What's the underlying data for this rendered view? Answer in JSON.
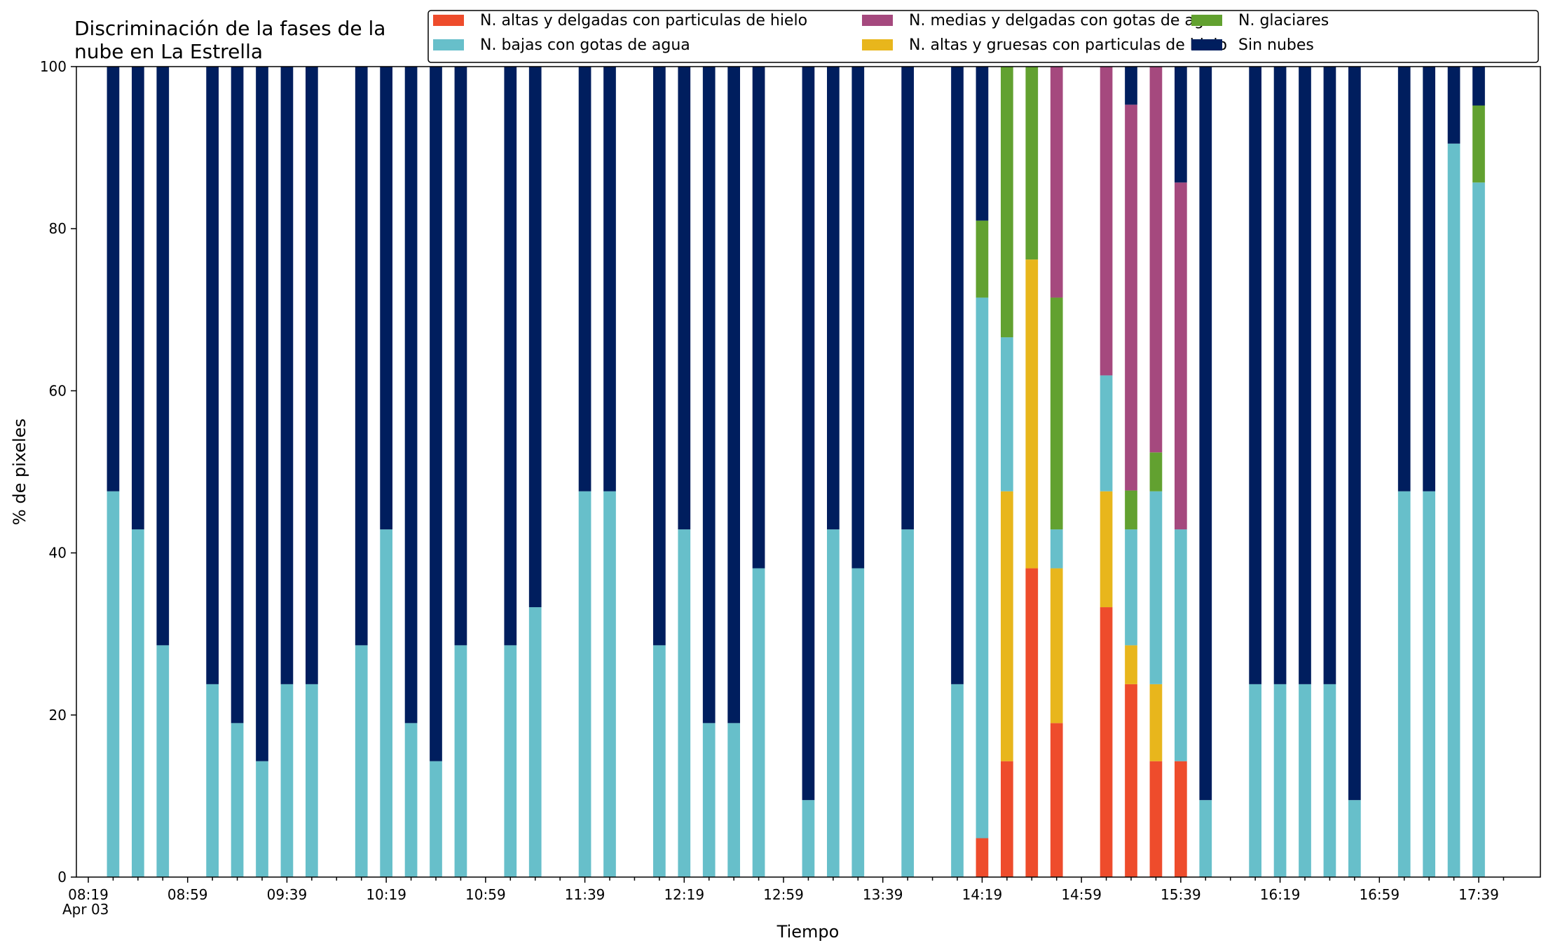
{
  "chart_data": {
    "type": "bar",
    "stacked": true,
    "title_lines": [
      "Discriminación de la fases de la",
      "nube en La Estrella"
    ],
    "xlabel": "Tiempo",
    "ylabel": "% de pixeles",
    "ylim": [
      0,
      100
    ],
    "y_ticks": [
      "0",
      "20",
      "40",
      "60",
      "80",
      "100"
    ],
    "x_tick_labels": [
      "08:19",
      "08:59",
      "09:39",
      "10:19",
      "10:59",
      "11:39",
      "12:19",
      "12:59",
      "13:39",
      "14:19",
      "14:59",
      "15:39",
      "16:19",
      "16:59",
      "17:39"
    ],
    "x_date_label": "Apr 03",
    "time_start": "08:19",
    "time_end": "17:39",
    "slot_minutes": 10,
    "grid": false,
    "legend_position": "top-right",
    "series": [
      {
        "name": "N. altas y delgadas con particulas de hielo",
        "color": "#ee4c2c"
      },
      {
        "name": "N. altas y gruesas con particulas de hielo",
        "color": "#e8b61c"
      },
      {
        "name": "N. bajas con gotas de agua",
        "color": "#67bfca"
      },
      {
        "name": "N. glaciares",
        "color": "#62a130"
      },
      {
        "name": "N. medias y delgadas con gotas de agua",
        "color": "#a5497e"
      },
      {
        "name": "Sin nubes",
        "color": "#001e5e"
      }
    ],
    "legend_order": [
      0,
      2,
      4,
      1,
      3,
      5
    ],
    "bars": [
      {
        "time": "08:29",
        "values": [
          0,
          0,
          47.6,
          0,
          0,
          52.4
        ]
      },
      {
        "time": "08:39",
        "values": [
          0,
          0,
          42.9,
          0,
          0,
          57.1
        ]
      },
      {
        "time": "08:49",
        "values": [
          0,
          0,
          28.6,
          0,
          0,
          71.4
        ]
      },
      {
        "time": "09:09",
        "values": [
          0,
          0,
          23.8,
          0,
          0,
          76.2
        ]
      },
      {
        "time": "09:19",
        "values": [
          0,
          0,
          19.0,
          0,
          0,
          81.0
        ]
      },
      {
        "time": "09:29",
        "values": [
          0,
          0,
          14.3,
          0,
          0,
          85.7
        ]
      },
      {
        "time": "09:39",
        "values": [
          0,
          0,
          23.8,
          0,
          0,
          76.2
        ]
      },
      {
        "time": "09:49",
        "values": [
          0,
          0,
          23.8,
          0,
          0,
          76.2
        ]
      },
      {
        "time": "10:09",
        "values": [
          0,
          0,
          28.6,
          0,
          0,
          71.4
        ]
      },
      {
        "time": "10:19",
        "values": [
          0,
          0,
          42.9,
          0,
          0,
          57.1
        ]
      },
      {
        "time": "10:29",
        "values": [
          0,
          0,
          19.0,
          0,
          0,
          81.0
        ]
      },
      {
        "time": "10:39",
        "values": [
          0,
          0,
          14.3,
          0,
          0,
          85.7
        ]
      },
      {
        "time": "10:49",
        "values": [
          0,
          0,
          28.6,
          0,
          0,
          71.4
        ]
      },
      {
        "time": "11:09",
        "values": [
          0,
          0,
          28.6,
          0,
          0,
          71.4
        ]
      },
      {
        "time": "11:19",
        "values": [
          0,
          0,
          33.3,
          0,
          0,
          66.7
        ]
      },
      {
        "time": "11:39",
        "values": [
          0,
          0,
          47.6,
          0,
          0,
          52.4
        ]
      },
      {
        "time": "11:49",
        "values": [
          0,
          0,
          47.6,
          0,
          0,
          52.4
        ]
      },
      {
        "time": "12:09",
        "values": [
          0,
          0,
          28.6,
          0,
          0,
          71.4
        ]
      },
      {
        "time": "12:19",
        "values": [
          0,
          0,
          42.9,
          0,
          0,
          57.1
        ]
      },
      {
        "time": "12:29",
        "values": [
          0,
          0,
          19.0,
          0,
          0,
          81.0
        ]
      },
      {
        "time": "12:39",
        "values": [
          0,
          0,
          19.0,
          0,
          0,
          81.0
        ]
      },
      {
        "time": "12:49",
        "values": [
          0,
          0,
          38.1,
          0,
          0,
          61.9
        ]
      },
      {
        "time": "13:09",
        "values": [
          0,
          0,
          9.5,
          0,
          0,
          90.5
        ]
      },
      {
        "time": "13:19",
        "values": [
          0,
          0,
          42.9,
          0,
          0,
          57.1
        ]
      },
      {
        "time": "13:29",
        "values": [
          0,
          0,
          38.1,
          0,
          0,
          61.9
        ]
      },
      {
        "time": "13:49",
        "values": [
          0,
          0,
          42.9,
          0,
          0,
          57.1
        ]
      },
      {
        "time": "14:09",
        "values": [
          0,
          0,
          23.8,
          0,
          0,
          76.2
        ]
      },
      {
        "time": "14:19",
        "values": [
          4.8,
          0,
          66.7,
          9.5,
          0,
          19.0
        ]
      },
      {
        "time": "14:29",
        "values": [
          14.3,
          33.3,
          19.0,
          33.4,
          0,
          0
        ]
      },
      {
        "time": "14:39",
        "values": [
          38.1,
          38.1,
          0,
          23.8,
          0,
          0
        ]
      },
      {
        "time": "14:49",
        "values": [
          19.0,
          19.1,
          4.8,
          28.6,
          28.5,
          0
        ]
      },
      {
        "time": "15:09",
        "values": [
          33.3,
          14.3,
          14.3,
          0,
          38.1,
          0
        ]
      },
      {
        "time": "15:19",
        "values": [
          23.8,
          4.8,
          14.3,
          4.8,
          47.6,
          4.7
        ]
      },
      {
        "time": "15:29",
        "values": [
          14.3,
          9.5,
          23.8,
          4.8,
          47.6,
          0
        ]
      },
      {
        "time": "15:39",
        "values": [
          14.3,
          0,
          28.6,
          0,
          42.8,
          14.3
        ]
      },
      {
        "time": "15:49",
        "values": [
          0,
          0,
          9.5,
          0,
          0,
          90.5
        ]
      },
      {
        "time": "16:09",
        "values": [
          0,
          0,
          23.8,
          0,
          0,
          76.2
        ]
      },
      {
        "time": "16:19",
        "values": [
          0,
          0,
          23.8,
          0,
          0,
          76.2
        ]
      },
      {
        "time": "16:29",
        "values": [
          0,
          0,
          23.8,
          0,
          0,
          76.2
        ]
      },
      {
        "time": "16:39",
        "values": [
          0,
          0,
          23.8,
          0,
          0,
          76.2
        ]
      },
      {
        "time": "16:49",
        "values": [
          0,
          0,
          9.5,
          0,
          0,
          90.5
        ]
      },
      {
        "time": "17:09",
        "values": [
          0,
          0,
          47.6,
          0,
          0,
          52.4
        ]
      },
      {
        "time": "17:19",
        "values": [
          0,
          0,
          47.6,
          0,
          0,
          52.4
        ]
      },
      {
        "time": "17:29",
        "values": [
          0,
          0,
          90.5,
          0,
          0,
          9.5
        ]
      },
      {
        "time": "17:39",
        "values": [
          0,
          0,
          85.7,
          9.5,
          0,
          4.8
        ]
      }
    ]
  }
}
